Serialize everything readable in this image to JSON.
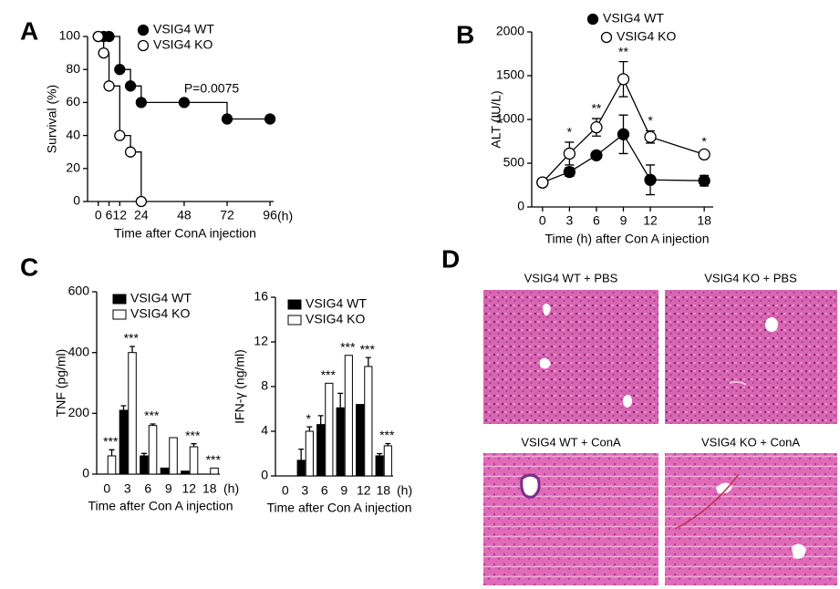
{
  "chart_data": [
    {
      "type": "step",
      "label": "A",
      "ylabel": "Survival (%)",
      "xlabel": "Time after ConA injection",
      "unit_label": "(h)",
      "annotation": "P=0.0075",
      "xlim": [
        -6,
        98
      ],
      "xticks": [
        0,
        6,
        12,
        24,
        48,
        72,
        96
      ],
      "ylim": [
        0,
        100
      ],
      "yticks": [
        0,
        20,
        40,
        60,
        80,
        100
      ],
      "series": [
        {
          "name": "VSIG4 WT",
          "color": "#000000",
          "x": [
            0,
            3,
            6,
            12,
            18,
            24,
            48,
            72,
            96
          ],
          "values": [
            100,
            100,
            100,
            80,
            70,
            60,
            60,
            50,
            50
          ]
        },
        {
          "name": "VSIG4 KO",
          "color": "#ffffff",
          "x": [
            0,
            3,
            6,
            12,
            18,
            24
          ],
          "values": [
            100,
            90,
            70,
            40,
            30,
            0
          ]
        }
      ]
    },
    {
      "type": "line",
      "label": "B",
      "ylabel": "ALT (IU/L)",
      "xlabel": "Time (h) after Con A injection",
      "xlim": [
        -1.2,
        19
      ],
      "xticks": [
        0,
        3,
        6,
        9,
        12,
        18
      ],
      "ylim": [
        0,
        2000
      ],
      "yticks": [
        0,
        500,
        1000,
        1500,
        2000
      ],
      "x": [
        0,
        3,
        6,
        9,
        12,
        18
      ],
      "significance": [
        null,
        "*",
        "**",
        "**",
        "*",
        "*"
      ],
      "series": [
        {
          "name": "VSIG4 WT",
          "color": "#000000",
          "values": [
            280,
            400,
            590,
            830,
            310,
            300
          ],
          "errors": [
            30,
            50,
            20,
            220,
            170,
            60
          ]
        },
        {
          "name": "VSIG4 KO",
          "color": "#ffffff",
          "values": [
            280,
            610,
            910,
            1460,
            800,
            600
          ],
          "errors": [
            30,
            130,
            100,
            200,
            70,
            30
          ]
        }
      ]
    },
    {
      "type": "bar",
      "label": "C",
      "ylabel": "TNF (pg/ml)",
      "xlabel": "Time after Con A injection",
      "unit_label": "(h)",
      "categories": [
        "0",
        "3",
        "6",
        "9",
        "12",
        "18"
      ],
      "ylim": [
        0,
        600
      ],
      "yticks": [
        0,
        200,
        400,
        600
      ],
      "significance": [
        "***",
        "***",
        "***",
        null,
        "***",
        "***"
      ],
      "series": [
        {
          "name": "VSIG4 WT",
          "color": "#000000",
          "values": [
            0,
            210,
            60,
            20,
            10,
            0
          ],
          "errors": [
            null,
            15,
            8,
            null,
            null,
            null
          ]
        },
        {
          "name": "VSIG4 KO",
          "color": "#ffffff",
          "values": [
            60,
            400,
            160,
            120,
            90,
            20
          ],
          "errors": [
            20,
            20,
            5,
            null,
            10,
            null
          ]
        }
      ]
    },
    {
      "type": "bar",
      "ylabel": "IFN-γ (ng/ml)",
      "xlabel": "Time after Con A injection",
      "unit_label": "(h)",
      "categories": [
        "0",
        "3",
        "6",
        "9",
        "12",
        "18"
      ],
      "ylim": [
        0,
        16
      ],
      "yticks": [
        0,
        4,
        8,
        12,
        16
      ],
      "significance": [
        null,
        "*",
        "***",
        "***",
        "***",
        "***"
      ],
      "series": [
        {
          "name": "VSIG4 WT",
          "color": "#000000",
          "values": [
            0,
            1.4,
            4.6,
            6.1,
            6.4,
            1.8
          ],
          "errors": [
            null,
            1,
            0.8,
            1.3,
            null,
            0.2
          ]
        },
        {
          "name": "VSIG4 KO",
          "color": "#ffffff",
          "values": [
            0,
            4,
            8.3,
            10.8,
            9.8,
            2.7
          ],
          "errors": [
            null,
            0.4,
            null,
            null,
            0.8,
            0.2
          ]
        }
      ]
    }
  ],
  "histology": {
    "label": "D",
    "images": [
      {
        "title": "VSIG4 WT + PBS"
      },
      {
        "title": "VSIG4 KO + PBS"
      },
      {
        "title": "VSIG4 WT + ConA"
      },
      {
        "title": "VSIG4 KO + ConA"
      }
    ]
  }
}
